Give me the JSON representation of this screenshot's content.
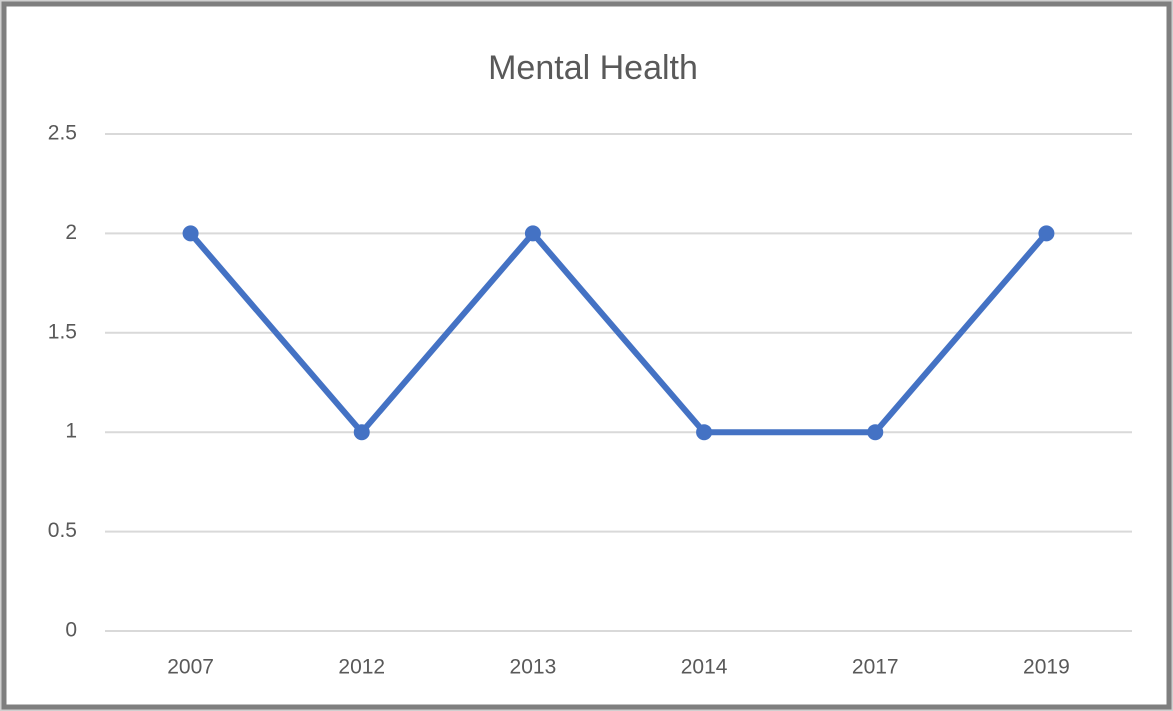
{
  "chart_data": {
    "type": "line",
    "title": "Mental Health",
    "categories": [
      "2007",
      "2012",
      "2013",
      "2014",
      "2017",
      "2019"
    ],
    "series": [
      {
        "name": "Mental Health",
        "color": "#4472c4",
        "values": [
          2,
          1,
          2,
          1,
          1,
          2
        ]
      }
    ],
    "ylim": [
      0,
      2.5
    ],
    "yticks": [
      0,
      0.5,
      1,
      1.5,
      2,
      2.5
    ],
    "grid": true
  }
}
